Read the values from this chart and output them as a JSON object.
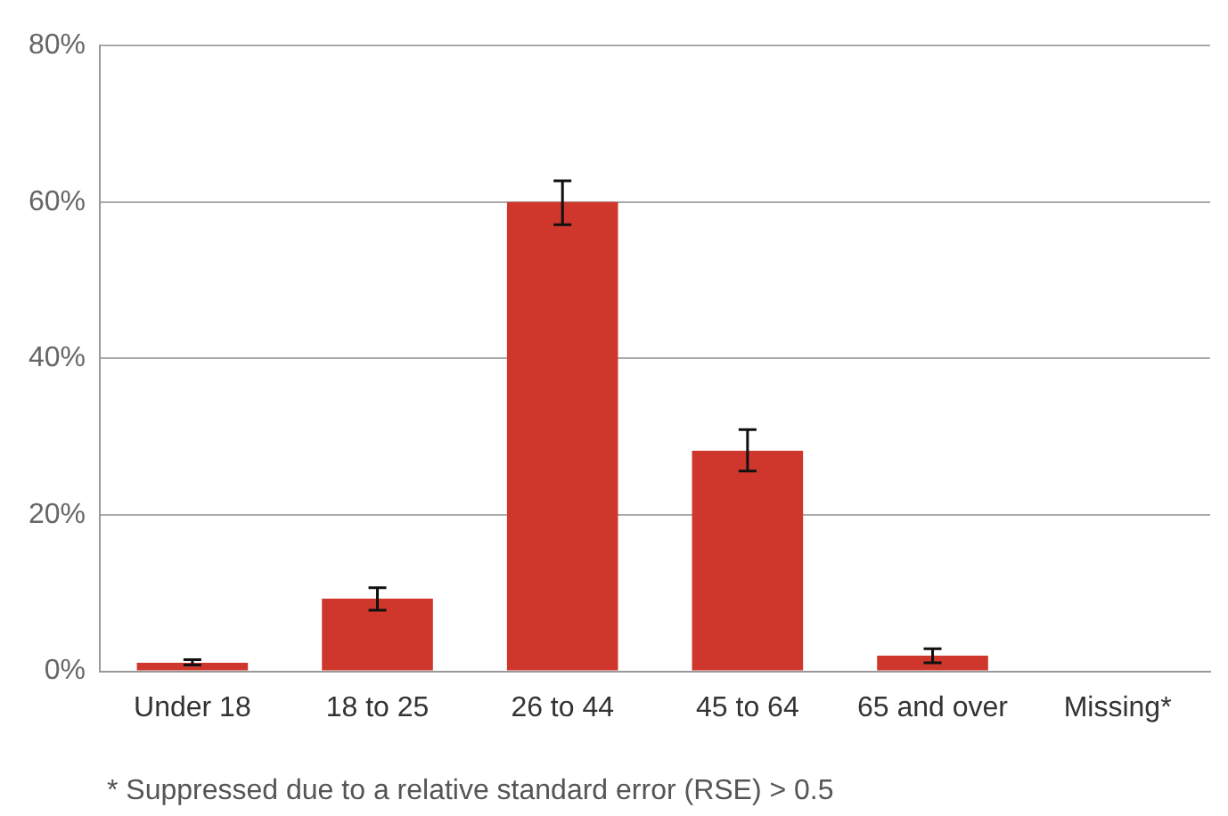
{
  "chart_data": {
    "type": "bar",
    "categories": [
      "Under 18",
      "18 to 25",
      "26 to 44",
      "45 to 64",
      "65 and over",
      "Missing*"
    ],
    "values": [
      1.1,
      9.3,
      60,
      28.2,
      2.0,
      null
    ],
    "errors": [
      [
        0.8,
        1.5
      ],
      [
        7.8,
        10.7
      ],
      [
        57.1,
        62.7
      ],
      [
        25.6,
        30.9
      ],
      [
        1.1,
        2.9
      ],
      null
    ],
    "color": "#cf372d",
    "ylim": [
      0,
      80
    ],
    "yticks": [
      {
        "value": 0,
        "label": "0%"
      },
      {
        "value": 20,
        "label": "20%"
      },
      {
        "value": 40,
        "label": "40%"
      },
      {
        "value": 60,
        "label": "60%"
      },
      {
        "value": 80,
        "label": "80%"
      }
    ],
    "grid": "y",
    "annotations": [
      "* Suppressed due to a relative standard error (RSE) > 0.5"
    ]
  }
}
